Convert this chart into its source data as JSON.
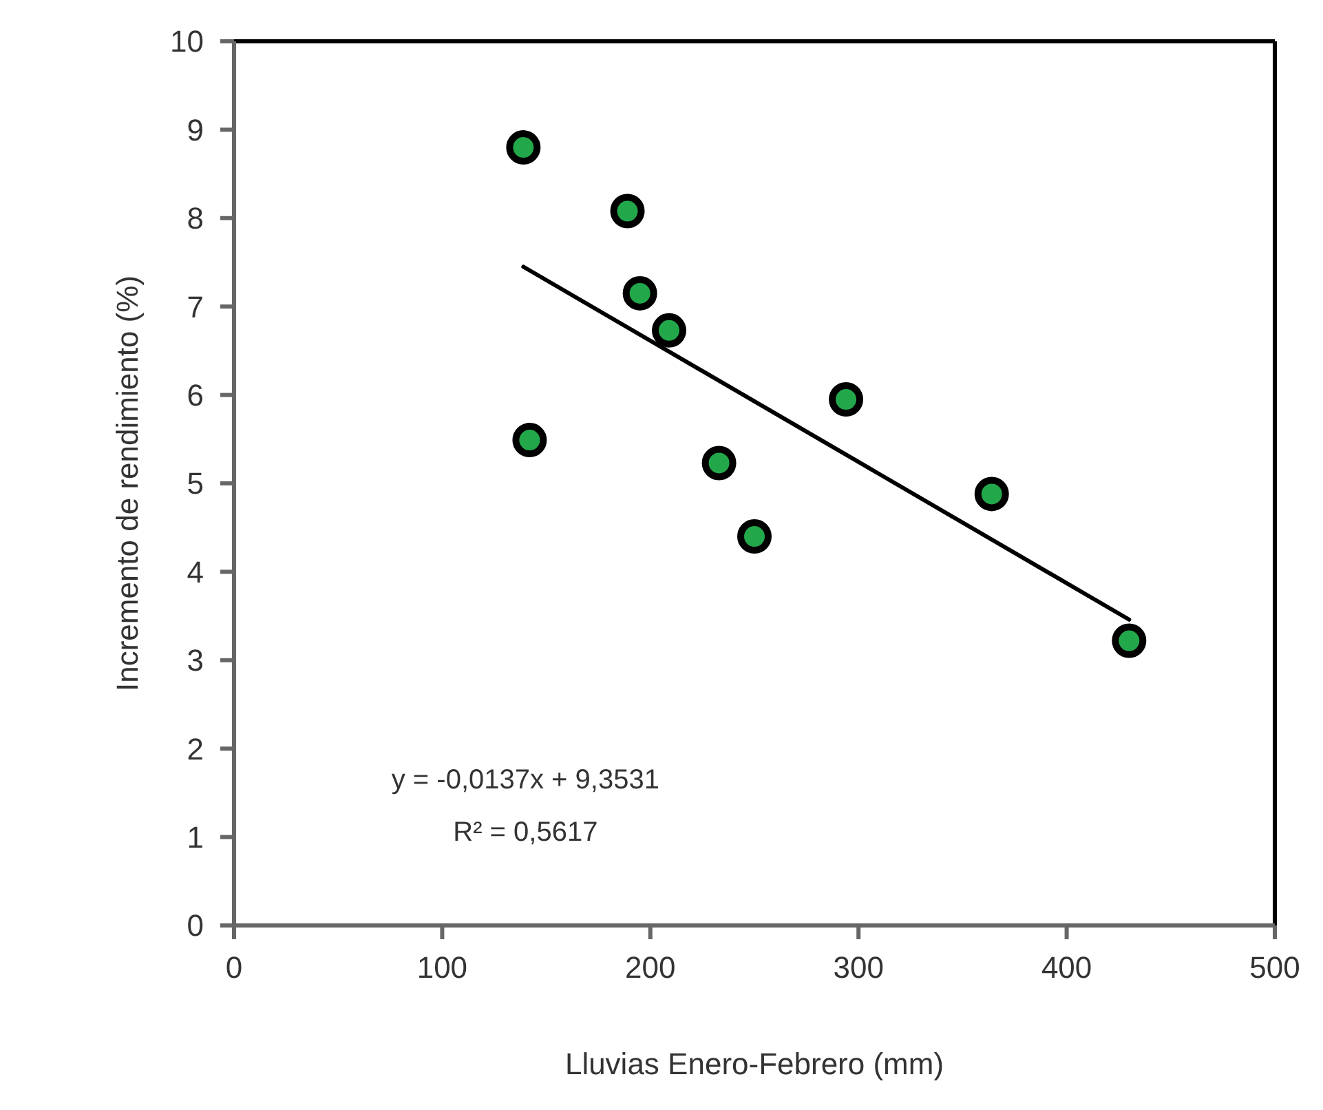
{
  "chart_data": {
    "type": "scatter",
    "xlabel": "Lluvias Enero-Febrero (mm)",
    "ylabel": "Incremento de rendimiento (%)",
    "xlim": [
      0,
      500
    ],
    "xticks": [
      0,
      100,
      200,
      300,
      400,
      500
    ],
    "ylim": [
      0,
      10
    ],
    "yticks": [
      0,
      1,
      2,
      3,
      4,
      5,
      6,
      7,
      8,
      9,
      10
    ],
    "grid": false,
    "series": [
      {
        "marker": "circle",
        "color": "#22a84a",
        "x": [
          139,
          189,
          195,
          209,
          142,
          233,
          250,
          294,
          364,
          430
        ],
        "values": [
          8.8,
          8.08,
          7.15,
          6.73,
          5.49,
          5.23,
          4.4,
          5.95,
          4.88,
          3.22
        ]
      },
      {
        "type": "line",
        "marker": "none",
        "color": "#000000",
        "line_style": "solid",
        "x": [
          139,
          430
        ],
        "values": [
          7.45,
          3.46
        ]
      }
    ],
    "annotations": [
      "y = -0,0137x + 9,3531",
      "R² = 0,5617"
    ]
  }
}
